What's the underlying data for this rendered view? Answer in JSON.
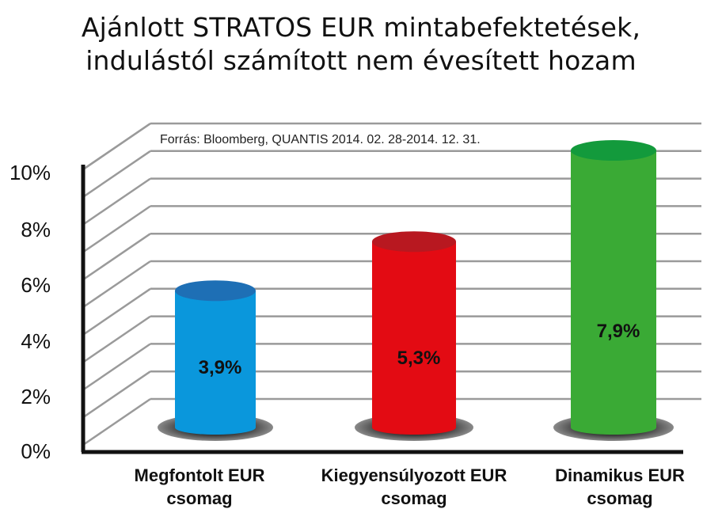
{
  "title_lines": [
    "Ajánlott STRATOS EUR mintabefektetések,",
    "indulástól számított nem évesített hozam"
  ],
  "source_note": "Forrás: Bloomberg, QUANTIS  2014. 02. 28-2014. 12. 31.",
  "chart_data": {
    "type": "bar",
    "title": "Ajánlott STRATOS EUR mintabefektetések, indulástól számított nem évesített hozam",
    "categories": [
      [
        "Megfontolt EUR",
        "csomag"
      ],
      [
        "Kiegyensúlyozott EUR",
        "csomag"
      ],
      [
        "Dinamikus EUR",
        "csomag"
      ]
    ],
    "values": [
      3.9,
      5.3,
      7.9
    ],
    "value_labels": [
      "3,9%",
      "5,3%",
      "7,9%"
    ],
    "bar_colors": [
      "#0a97dc",
      "#e30b13",
      "#3aaa35"
    ],
    "bar_top_colors": [
      "#1e6fb5",
      "#b81820",
      "#139a3c"
    ],
    "yticks": [
      "0%",
      "2%",
      "4%",
      "6%",
      "8%",
      "10%"
    ],
    "ylim": [
      0,
      10
    ],
    "grid": true,
    "xlabel": "",
    "ylabel": ""
  }
}
